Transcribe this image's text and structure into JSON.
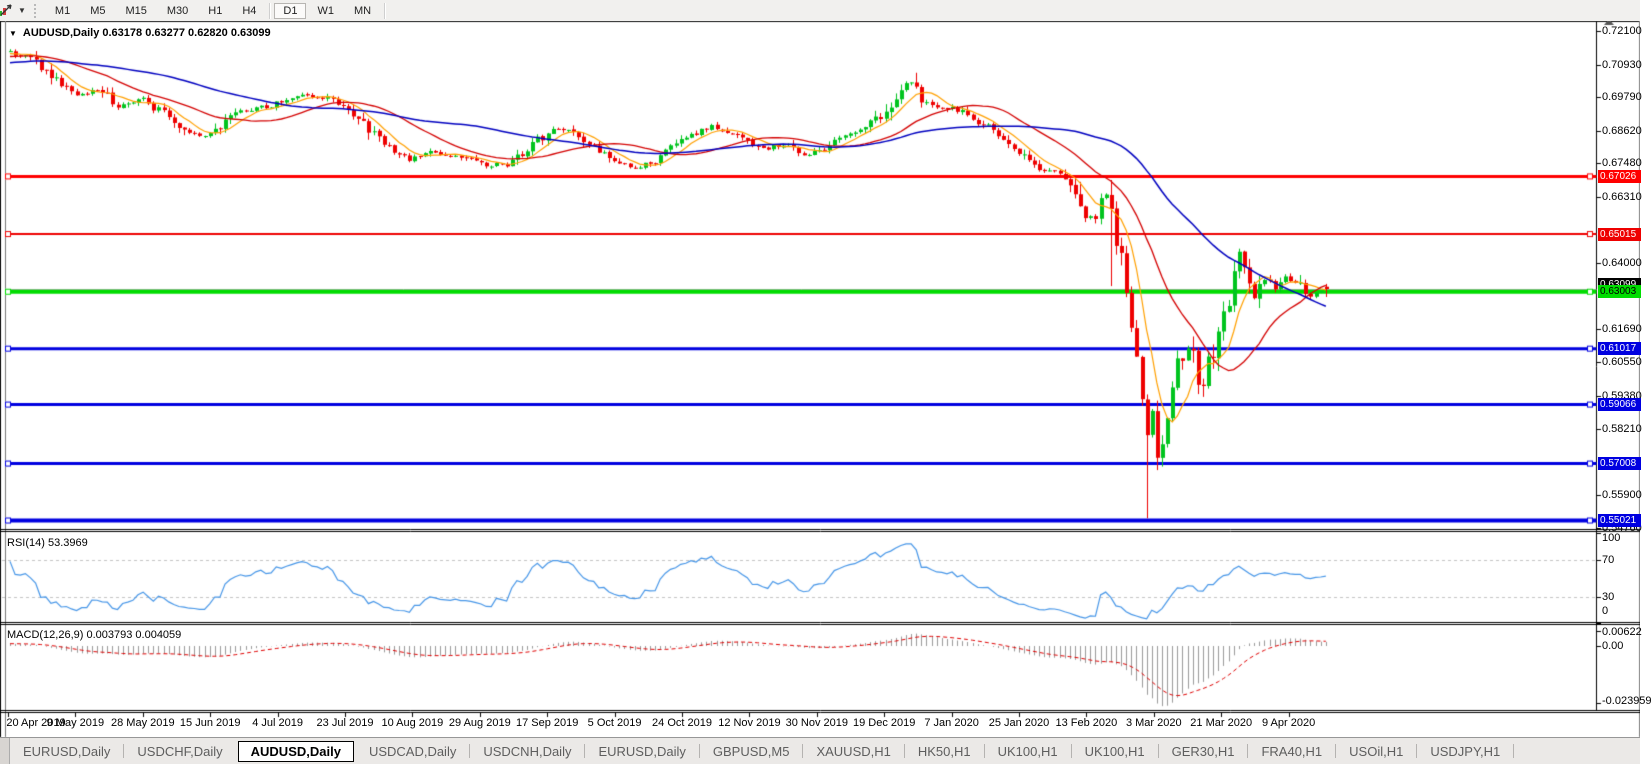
{
  "toolbar": {
    "tool_icon": "chart-drawing-tool",
    "dropdown_icon": "▼",
    "timeframes": [
      {
        "label": "M1",
        "active": false
      },
      {
        "label": "M5",
        "active": false
      },
      {
        "label": "M15",
        "active": false
      },
      {
        "label": "M30",
        "active": false
      },
      {
        "label": "H1",
        "active": false
      },
      {
        "label": "H4",
        "active": false
      },
      {
        "label": "D1",
        "active": true
      },
      {
        "label": "W1",
        "active": false
      },
      {
        "label": "MN",
        "active": false
      }
    ]
  },
  "chart": {
    "title": {
      "dropdown_icon": "▼",
      "text": "AUDUSD,Daily  0.63178 0.63277 0.62820 0.63099"
    },
    "y_axis": {
      "ticks": [
        "0.72100",
        "0.70930",
        "0.69790",
        "0.68620",
        "0.67480",
        "0.66310",
        "0.64000",
        "0.61690",
        "0.60550",
        "0.59380",
        "0.58210",
        "0.55900",
        "0.54760"
      ],
      "max": 0.721,
      "min": 0.5476
    },
    "bid_badge": {
      "label": "0.63099",
      "bg": "#000000",
      "fg": "#FFFFFF"
    },
    "h_lines": [
      {
        "price": 0.67026,
        "label": "0.67026",
        "color": "#FF0000",
        "width": 3,
        "text": "#FFFFFF"
      },
      {
        "price": 0.65015,
        "label": "0.65015",
        "color": "#EE0000",
        "width": 2,
        "text": "#FFFFFF"
      },
      {
        "price": 0.63003,
        "label": "0.63003",
        "color": "#00DD00",
        "width": 4,
        "text": "#000000"
      },
      {
        "price": 0.61017,
        "label": "0.61017",
        "color": "#0000E0",
        "width": 3,
        "text": "#FFFFFF"
      },
      {
        "price": 0.59066,
        "label": "0.59066",
        "color": "#0000E0",
        "width": 3,
        "text": "#FFFFFF"
      },
      {
        "price": 0.57008,
        "label": "0.57008",
        "color": "#0000E0",
        "width": 3,
        "text": "#FFFFFF"
      },
      {
        "price": 0.55021,
        "label": "0.55021",
        "color": "#0000E0",
        "width": 4,
        "text": "#FFFFFF"
      }
    ],
    "x_axis": {
      "labels": [
        "20 Apr 2019",
        "9 May 2019",
        "28 May 2019",
        "15 Jun 2019",
        "4 Jul 2019",
        "23 Jul 2019",
        "10 Aug 2019",
        "29 Aug 2019",
        "17 Sep 2019",
        "5 Oct 2019",
        "24 Oct 2019",
        "12 Nov 2019",
        "30 Nov 2019",
        "19 Dec 2019",
        "7 Jan 2020",
        "25 Jan 2020",
        "13 Feb 2020",
        "3 Mar 2020",
        "21 Mar 2020",
        "9 Apr 2020"
      ]
    }
  },
  "indicators": {
    "rsi": {
      "label": "RSI(14) 53.3969",
      "ticks": [
        "100",
        "70",
        "30",
        "0"
      ],
      "levels": [
        70,
        30
      ],
      "color": "#4696E8"
    },
    "macd": {
      "label": "MACD(12,26,9) 0.003793 0.004059",
      "ticks": [
        "0.00622",
        "0.00",
        "-0.023959"
      ],
      "hist_color": "#9A9A9A",
      "signal_color": "#E00000"
    }
  },
  "tabs": [
    {
      "label": "EURUSD,Daily",
      "active": false
    },
    {
      "label": "USDCHF,Daily",
      "active": false
    },
    {
      "label": "AUDUSD,Daily",
      "active": true
    },
    {
      "label": "USDCAD,Daily",
      "active": false
    },
    {
      "label": "USDCNH,Daily",
      "active": false
    },
    {
      "label": "EURUSD,Daily",
      "active": false
    },
    {
      "label": "GBPUSD,M5",
      "active": false
    },
    {
      "label": "XAUUSD,H1",
      "active": false
    },
    {
      "label": "HK50,H1",
      "active": false
    },
    {
      "label": "UK100,H1",
      "active": false
    },
    {
      "label": "UK100,H1",
      "active": false
    },
    {
      "label": "GER30,H1",
      "active": false
    },
    {
      "label": "FRA40,H1",
      "active": false
    },
    {
      "label": "USOil,H1",
      "active": false
    },
    {
      "label": "USDJPY,H1",
      "active": false
    }
  ],
  "chart_data": {
    "type": "candlestick",
    "symbol": "AUDUSD",
    "timeframe": "Daily",
    "current_ohlc": {
      "open": 0.63178,
      "high": 0.63277,
      "low": 0.6282,
      "close": 0.63099
    },
    "price_range": [
      0.5476,
      0.721
    ],
    "num_candles": 258,
    "up_color": "#00C41E",
    "down_color": "#EE0000",
    "bid_price": 0.63099,
    "bid_line_color": "#ABABAB",
    "close_anchors": [
      [
        0,
        0.7135
      ],
      [
        4,
        0.7118
      ],
      [
        9,
        0.7035
      ],
      [
        13,
        0.6988
      ],
      [
        17,
        0.7008
      ],
      [
        21,
        0.6948
      ],
      [
        26,
        0.6975
      ],
      [
        31,
        0.6905
      ],
      [
        35,
        0.685
      ],
      [
        39,
        0.6848
      ],
      [
        45,
        0.6928
      ],
      [
        51,
        0.695
      ],
      [
        56,
        0.6988
      ],
      [
        62,
        0.6975
      ],
      [
        66,
        0.6945
      ],
      [
        72,
        0.6832
      ],
      [
        78,
        0.676
      ],
      [
        83,
        0.6788
      ],
      [
        88,
        0.6768
      ],
      [
        93,
        0.674
      ],
      [
        97,
        0.6748
      ],
      [
        101,
        0.68
      ],
      [
        106,
        0.6872
      ],
      [
        110,
        0.6858
      ],
      [
        115,
        0.6796
      ],
      [
        119,
        0.6755
      ],
      [
        123,
        0.6732
      ],
      [
        127,
        0.6768
      ],
      [
        132,
        0.6838
      ],
      [
        137,
        0.6878
      ],
      [
        142,
        0.6842
      ],
      [
        147,
        0.6796
      ],
      [
        151,
        0.6815
      ],
      [
        156,
        0.6775
      ],
      [
        161,
        0.6828
      ],
      [
        167,
        0.6866
      ],
      [
        171,
        0.6932
      ],
      [
        174,
        0.7018
      ],
      [
        176,
        0.7028
      ],
      [
        178,
        0.6962
      ],
      [
        182,
        0.6946
      ],
      [
        186,
        0.6932
      ],
      [
        190,
        0.6882
      ],
      [
        196,
        0.6806
      ],
      [
        201,
        0.6732
      ],
      [
        205,
        0.6714
      ],
      [
        208,
        0.665
      ],
      [
        210,
        0.6555
      ],
      [
        212,
        0.656
      ],
      [
        214,
        0.6638
      ],
      [
        215,
        0.66
      ],
      [
        216,
        0.644
      ],
      [
        217,
        0.647
      ],
      [
        218,
        0.632
      ],
      [
        219,
        0.618
      ],
      [
        220,
        0.606
      ],
      [
        221,
        0.592
      ],
      [
        222,
        0.578
      ],
      [
        223,
        0.588
      ],
      [
        224,
        0.572
      ],
      [
        225,
        0.58
      ],
      [
        226,
        0.588
      ],
      [
        227,
        0.5985
      ],
      [
        229,
        0.6085
      ],
      [
        231,
        0.611
      ],
      [
        232,
        0.5965
      ],
      [
        233,
        0.5995
      ],
      [
        235,
        0.6085
      ],
      [
        237,
        0.6205
      ],
      [
        239,
        0.634
      ],
      [
        240,
        0.643
      ],
      [
        241,
        0.6392
      ],
      [
        243,
        0.6285
      ],
      [
        245,
        0.634
      ],
      [
        247,
        0.6302
      ],
      [
        249,
        0.6358
      ],
      [
        251,
        0.6338
      ],
      [
        253,
        0.6285
      ],
      [
        255,
        0.63
      ],
      [
        257,
        0.631
      ]
    ],
    "spikes": [
      {
        "i": 215,
        "low": 0.632,
        "high": 0.669
      },
      {
        "i": 222,
        "low": 0.551
      }
    ],
    "moving_averages": [
      {
        "period": 7,
        "color": "#FFA000",
        "width": 1.2
      },
      {
        "period": 21,
        "color": "#D40000",
        "width": 1.3
      },
      {
        "period": 50,
        "color": "#0000C0",
        "width": 1.5
      }
    ],
    "levels": [
      0.67026,
      0.65015,
      0.63003,
      0.61017,
      0.59066,
      0.57008,
      0.55021
    ],
    "rsi": {
      "period": 14,
      "current": 53.3969,
      "overbought": 70,
      "oversold": 30
    },
    "macd": {
      "fast": 12,
      "slow": 26,
      "signal": 9,
      "current_macd": 0.003793,
      "current_signal": 0.004059,
      "panel_max": 0.00622,
      "panel_min": -0.023959
    }
  }
}
